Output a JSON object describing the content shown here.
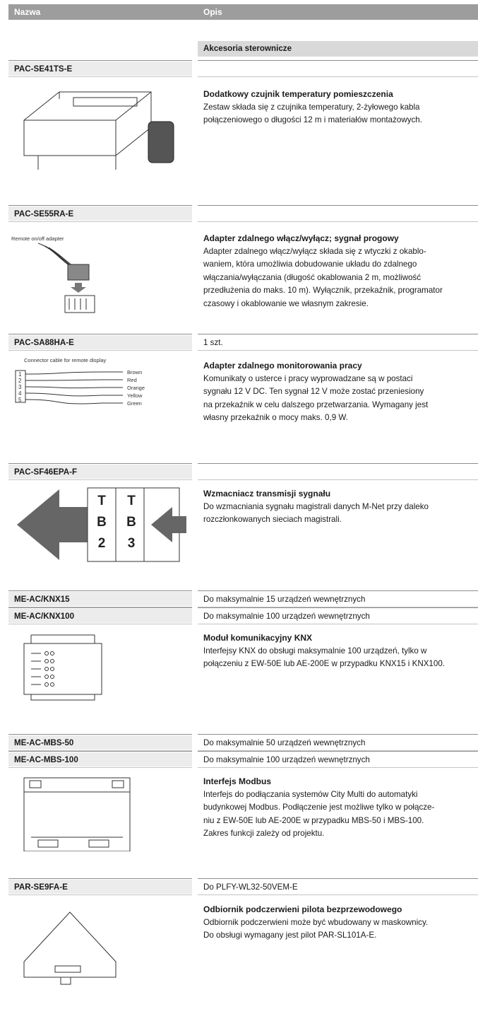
{
  "header": {
    "name_col": "Nazwa",
    "desc_col": "Opis"
  },
  "section": "Akcesoria sterownicze",
  "items": [
    {
      "codes": [
        {
          "code": "PAC-SE41TS-E"
        }
      ],
      "title": "Dodatkowy czujnik temperatury pomieszczenia",
      "lines": [
        "Zestaw składa się z czujnika temperatury, 2-żyłowego kabla",
        "połączeniowego o długości 12 m i materiałów montażowych."
      ]
    },
    {
      "codes": [
        {
          "code": "PAC-SE55RA-E"
        }
      ],
      "title": "Adapter zdalnego włącz/wyłącz; sygnał progowy",
      "lines": [
        "Adapter zdalnego włącz/wyłącz składa się z wtyczki z okablo-",
        "waniem, która umożliwia dobudowanie układu do zdalnego",
        "włączania/wyłączania (długość okablowania 2 m, możliwość",
        "przedłużenia do maks. 10 m). Wyłącznik, przekaźnik, programator",
        "czasowy i okablowanie we własnym zakresie."
      ],
      "image_labels": [
        "Remote on/off adapter"
      ]
    },
    {
      "codes": [
        {
          "code": "PAC-SA88HA-E",
          "note": "1 szt."
        }
      ],
      "title": "Adapter zdalnego monitorowania pracy",
      "lines": [
        "Komunikaty o usterce i pracy wyprowadzane są w postaci",
        "sygnału 12 V DC. Ten sygnał 12 V może zostać przeniesiony",
        "na przekaźnik w celu dalszego przetwarzania. Wymagany jest",
        "własny przekaźnik o mocy maks. 0,9 W."
      ],
      "image_labels": [
        "Connector cable for remote display",
        "1",
        "2",
        "3",
        "4",
        "5",
        "Brown",
        "Red",
        "Orange",
        "Yellow",
        "Green"
      ]
    },
    {
      "codes": [
        {
          "code": "PAC-SF46EPA-F"
        }
      ],
      "title": "Wzmacniacz transmisji sygnału",
      "lines": [
        "Do wzmacniania sygnału magistrali danych M-Net przy daleko",
        "rozczłonkowanych sieciach magistrali."
      ],
      "image_labels": [
        "T",
        "B",
        "2",
        "T",
        "B",
        "3"
      ]
    },
    {
      "codes": [
        {
          "code": "ME-AC/KNX15",
          "note": "Do maksymalnie 15 urządzeń wewnętrznych"
        },
        {
          "code": "ME-AC/KNX100",
          "note": "Do maksymalnie 100 urządzeń wewnętrznych"
        }
      ],
      "title": "Moduł komunikacyjny KNX",
      "lines": [
        "Interfejsy KNX do obsługi maksymalnie 100 urządzeń, tylko w",
        "połączeniu z EW-50E lub AE-200E w przypadku KNX15 i KNX100."
      ]
    },
    {
      "codes": [
        {
          "code": "ME-AC-MBS-50",
          "note": "Do maksymalnie 50 urządzeń wewnętrznych"
        },
        {
          "code": "ME-AC-MBS-100",
          "note": "Do maksymalnie 100 urządzeń wewnętrznych"
        }
      ],
      "title": "Interfejs Modbus",
      "lines": [
        "Interfejs do podłączania systemów City Multi do automatyki",
        "budynkowej Modbus. Podłączenie jest możliwe tylko w połącze-",
        "niu z EW-50E lub AE-200E w przypadku MBS-50 i MBS-100.",
        "Zakres funkcji zależy od projektu."
      ]
    },
    {
      "codes": [
        {
          "code": "PAR-SE9FA-E",
          "note": "Do PLFY-WL32-50VEM-E"
        }
      ],
      "title": "Odbiornik podczerwieni pilota bezprzewodowego",
      "lines": [
        "Odbiornik podczerwieni może być wbudowany w maskownicy.",
        "Do obsługi wymagany jest pilot PAR-SL101A-E."
      ]
    }
  ]
}
